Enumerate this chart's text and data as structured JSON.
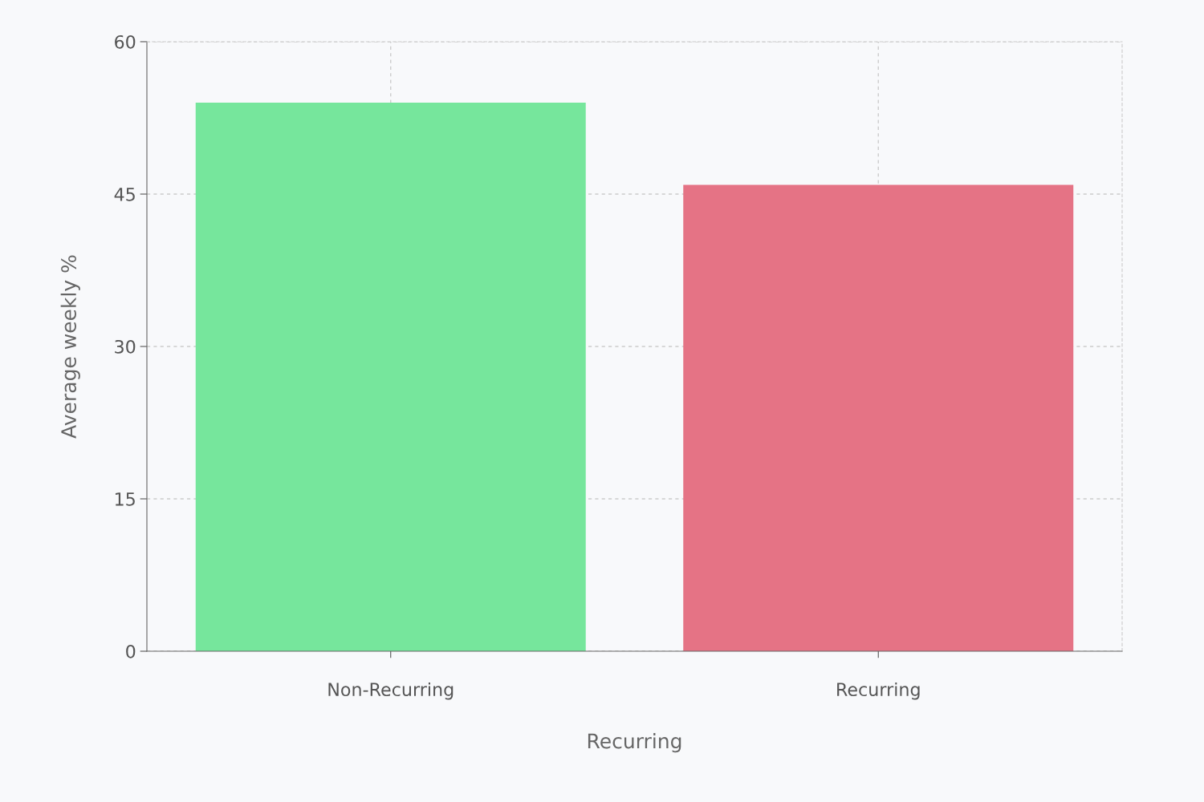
{
  "chart_data": {
    "type": "bar",
    "xlabel": "Recurring",
    "ylabel": "Average weekly %",
    "categories": [
      "Non-Recurring",
      "Recurring"
    ],
    "values": [
      54,
      45.9
    ],
    "colors": [
      "#76e69c",
      "#e57385"
    ],
    "ylim": [
      0,
      60
    ],
    "yticks": [
      0,
      15,
      30,
      45,
      60
    ],
    "grid": true
  }
}
